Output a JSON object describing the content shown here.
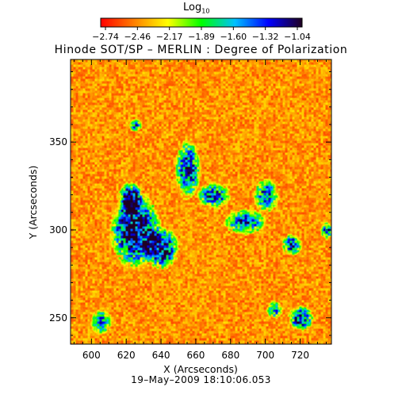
{
  "chart_data": {
    "type": "heatmap",
    "title": "Hinode SOT/SP – MERLIN : Degree of Polarization",
    "xlabel": "X (Arcseconds)",
    "ylabel": "Y (Arcseconds)",
    "xlim": [
      588,
      738
    ],
    "ylim": [
      235,
      397
    ],
    "x_ticks": [
      "600",
      "620",
      "640",
      "660",
      "680",
      "700",
      "720"
    ],
    "y_ticks": [
      "250",
      "300",
      "350"
    ],
    "x_tick_values": [
      600,
      620,
      640,
      660,
      680,
      700,
      720
    ],
    "y_tick_values": [
      250,
      300,
      350
    ],
    "colorbar": {
      "label": "Log",
      "label_subscript": "10",
      "ticks": [
        "−2.74",
        "−2.46",
        "−2.17",
        "−1.89",
        "−1.60",
        "−1.32",
        "−1.04"
      ],
      "range": [
        -2.74,
        -1.04
      ],
      "colors": [
        "#ff0000",
        "#ff8000",
        "#ffff00",
        "#00ff00",
        "#00c0ff",
        "#0000ff",
        "#200020"
      ]
    },
    "strong_field_regions": [
      {
        "x": 625,
        "y": 300,
        "rx": 12,
        "ry": 18,
        "level": 0.95
      },
      {
        "x": 640,
        "y": 290,
        "rx": 8,
        "ry": 10,
        "level": 0.9
      },
      {
        "x": 622,
        "y": 318,
        "rx": 6,
        "ry": 8,
        "level": 0.85
      },
      {
        "x": 655,
        "y": 335,
        "rx": 6,
        "ry": 14,
        "level": 0.75
      },
      {
        "x": 670,
        "y": 320,
        "rx": 8,
        "ry": 6,
        "level": 0.7
      },
      {
        "x": 688,
        "y": 305,
        "rx": 10,
        "ry": 6,
        "level": 0.7
      },
      {
        "x": 700,
        "y": 320,
        "rx": 6,
        "ry": 8,
        "level": 0.65
      },
      {
        "x": 715,
        "y": 292,
        "rx": 5,
        "ry": 5,
        "level": 0.7
      },
      {
        "x": 720,
        "y": 250,
        "rx": 6,
        "ry": 6,
        "level": 0.75
      },
      {
        "x": 705,
        "y": 255,
        "rx": 4,
        "ry": 4,
        "level": 0.6
      },
      {
        "x": 605,
        "y": 248,
        "rx": 5,
        "ry": 6,
        "level": 0.6
      },
      {
        "x": 625,
        "y": 360,
        "rx": 3,
        "ry": 3,
        "level": 0.6
      },
      {
        "x": 735,
        "y": 300,
        "rx": 3,
        "ry": 4,
        "level": 0.7
      }
    ]
  },
  "footer": {
    "date": "19–May–2009  18:10:06.053"
  }
}
